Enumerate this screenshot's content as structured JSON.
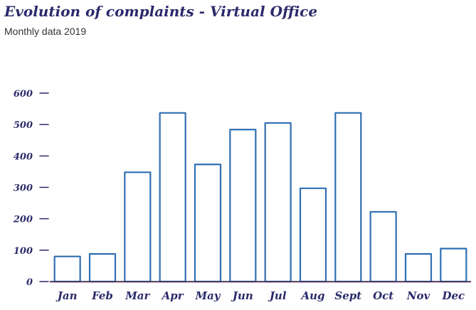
{
  "chart_data": {
    "type": "bar",
    "title": "Evolution of complaints - Virtual Office",
    "subtitle": "Monthly data 2019",
    "xlabel": "",
    "ylabel": "",
    "categories": [
      "Jan",
      "Feb",
      "Mar",
      "Apr",
      "May",
      "Jun",
      "Jul",
      "Aug",
      "Sept",
      "Oct",
      "Nov",
      "Dec"
    ],
    "values": [
      80,
      88,
      348,
      537,
      373,
      484,
      505,
      297,
      537,
      222,
      88,
      105
    ],
    "ylim": [
      0,
      600
    ],
    "yticks": [
      0,
      100,
      200,
      300,
      400,
      500,
      600
    ],
    "grid": false,
    "legend": "none"
  },
  "colors": {
    "bar_stroke": "#2f6fb3",
    "axis_text": "#2b2a6b",
    "baseline": "#3a3a5c",
    "baseline_accent": "#b9386a"
  }
}
